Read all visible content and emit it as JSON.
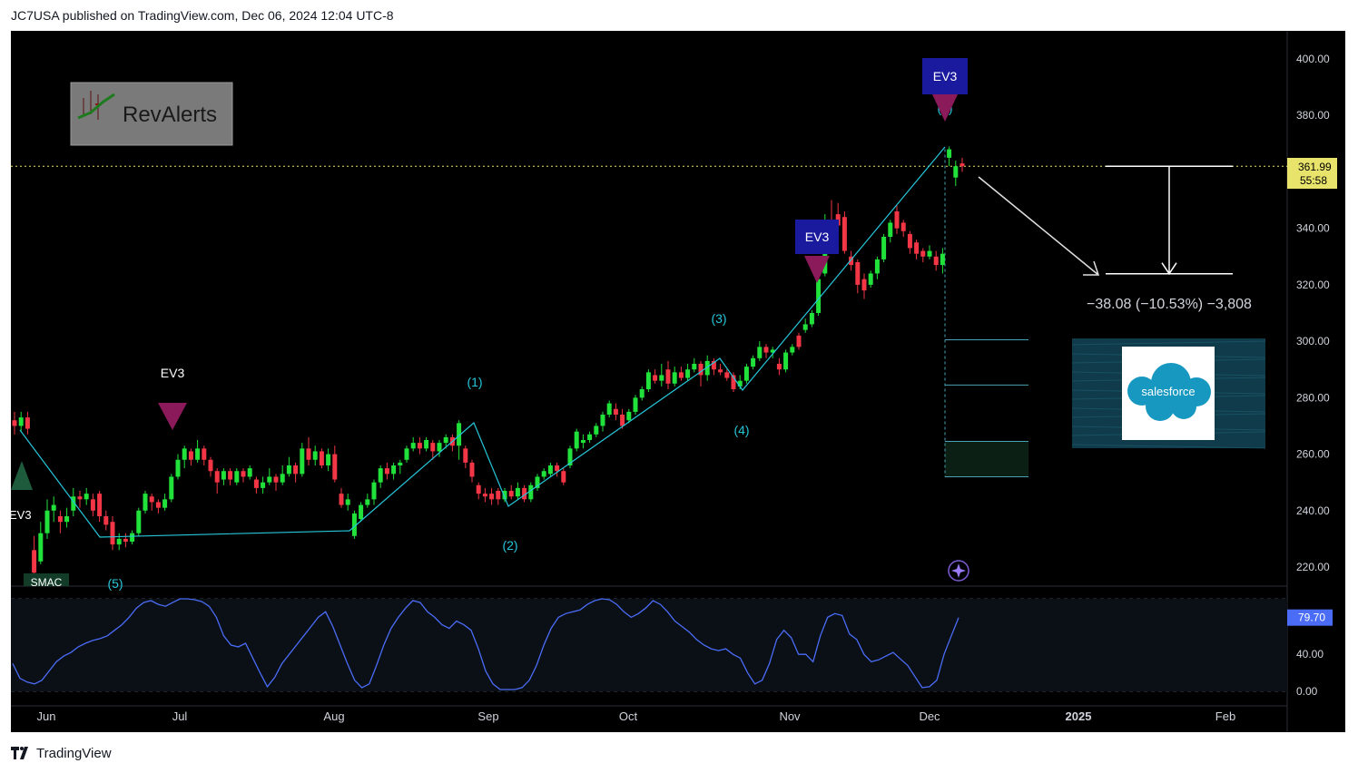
{
  "header": {
    "text": "JC7USA published on TradingView.com, Dec 06, 2024 12:04 UTC-8"
  },
  "footer": {
    "brand": "TradingView"
  },
  "logo": {
    "text": "RevAlerts"
  },
  "badge": {
    "text": "salesforce"
  },
  "colors": {
    "up": "#21e23b",
    "down": "#f23645",
    "wave": "#26c6da",
    "rsi": "#4a6cf7",
    "ev3_box": "#1a1a9e",
    "arrow": "#8b1a5a",
    "price_line": "#e8e36b"
  },
  "chart_data": {
    "type": "candlestick",
    "price_axis": {
      "ticks": [
        "400.00",
        "380.00",
        "360.00",
        "340.00",
        "320.00",
        "300.00",
        "280.00",
        "260.00",
        "240.00",
        "220.00"
      ],
      "range": [
        212,
        400
      ]
    },
    "rsi_axis": {
      "ticks": [
        "40.00",
        "0.00"
      ],
      "range": [
        0,
        100
      ],
      "current": "79.70"
    },
    "time_axis": {
      "ticks": [
        "Jun",
        "Jul",
        "Aug",
        "Sep",
        "Oct",
        "Nov",
        "Dec",
        "2025",
        "Feb"
      ]
    },
    "last_price": "361.99",
    "countdown": "55:58",
    "measure": {
      "text": "−38.08 (−10.53%) −3,808",
      "from": 361.99,
      "to": 323.91
    },
    "wave_labels": [
      "(1)",
      "(2)",
      "(3)",
      "(4)",
      "(5)",
      "(5)"
    ],
    "signals": [
      "EV3",
      "EV3",
      "EV3",
      "EV3"
    ],
    "tag": "SMAC",
    "target_levels": [
      300.5,
      284.5,
      264.5,
      252.0
    ],
    "candles": [
      {
        "o": 272,
        "c": 270,
        "h": 275,
        "l": 267
      },
      {
        "o": 270,
        "c": 273,
        "h": 275,
        "l": 268
      },
      {
        "o": 273,
        "c": 269,
        "h": 275,
        "l": 267
      },
      {
        "o": 226,
        "c": 218,
        "h": 231,
        "l": 214
      },
      {
        "o": 222,
        "c": 232,
        "h": 236,
        "l": 221
      },
      {
        "o": 232,
        "c": 240,
        "h": 244,
        "l": 230
      },
      {
        "o": 240,
        "c": 242,
        "h": 245,
        "l": 236
      },
      {
        "o": 238,
        "c": 236,
        "h": 240,
        "l": 232
      },
      {
        "o": 236,
        "c": 238,
        "h": 241,
        "l": 234
      },
      {
        "o": 240,
        "c": 245,
        "h": 248,
        "l": 238
      },
      {
        "o": 245,
        "c": 244,
        "h": 247,
        "l": 241
      },
      {
        "o": 244,
        "c": 246,
        "h": 248,
        "l": 242
      },
      {
        "o": 244,
        "c": 240,
        "h": 246,
        "l": 238
      },
      {
        "o": 246,
        "c": 238,
        "h": 247,
        "l": 236
      },
      {
        "o": 238,
        "c": 235,
        "h": 240,
        "l": 233
      },
      {
        "o": 236,
        "c": 228,
        "h": 238,
        "l": 226
      },
      {
        "o": 228,
        "c": 230,
        "h": 232,
        "l": 226
      },
      {
        "o": 230,
        "c": 229,
        "h": 232,
        "l": 227
      },
      {
        "o": 229,
        "c": 232,
        "h": 233,
        "l": 228
      },
      {
        "o": 232,
        "c": 240,
        "h": 241,
        "l": 231
      },
      {
        "o": 240,
        "c": 246,
        "h": 247,
        "l": 239
      },
      {
        "o": 245,
        "c": 243,
        "h": 246,
        "l": 240
      },
      {
        "o": 243,
        "c": 241,
        "h": 244,
        "l": 239
      },
      {
        "o": 241,
        "c": 244,
        "h": 246,
        "l": 240
      },
      {
        "o": 244,
        "c": 252,
        "h": 253,
        "l": 243
      },
      {
        "o": 252,
        "c": 258,
        "h": 260,
        "l": 251
      },
      {
        "o": 258,
        "c": 262,
        "h": 263,
        "l": 255
      },
      {
        "o": 261,
        "c": 258,
        "h": 262,
        "l": 256
      },
      {
        "o": 258,
        "c": 262,
        "h": 265,
        "l": 257
      },
      {
        "o": 262,
        "c": 258,
        "h": 263,
        "l": 256
      },
      {
        "o": 258,
        "c": 254,
        "h": 259,
        "l": 252
      },
      {
        "o": 254,
        "c": 250,
        "h": 255,
        "l": 246
      },
      {
        "o": 251,
        "c": 254,
        "h": 255,
        "l": 249
      },
      {
        "o": 254,
        "c": 251,
        "h": 255,
        "l": 249
      },
      {
        "o": 250,
        "c": 254,
        "h": 255,
        "l": 249
      },
      {
        "o": 254,
        "c": 252,
        "h": 255,
        "l": 250
      },
      {
        "o": 252,
        "c": 255,
        "h": 256,
        "l": 251
      },
      {
        "o": 251,
        "c": 248,
        "h": 252,
        "l": 246
      },
      {
        "o": 248,
        "c": 250,
        "h": 252,
        "l": 246
      },
      {
        "o": 250,
        "c": 252,
        "h": 255,
        "l": 249
      },
      {
        "o": 252,
        "c": 250,
        "h": 253,
        "l": 247
      },
      {
        "o": 250,
        "c": 253,
        "h": 256,
        "l": 249
      },
      {
        "o": 253,
        "c": 256,
        "h": 259,
        "l": 252
      },
      {
        "o": 256,
        "c": 253,
        "h": 257,
        "l": 250
      },
      {
        "o": 253,
        "c": 262,
        "h": 264,
        "l": 252
      },
      {
        "o": 262,
        "c": 258,
        "h": 266,
        "l": 256
      },
      {
        "o": 258,
        "c": 261,
        "h": 263,
        "l": 256
      },
      {
        "o": 261,
        "c": 256,
        "h": 262,
        "l": 255
      },
      {
        "o": 256,
        "c": 260,
        "h": 262,
        "l": 254
      },
      {
        "o": 260,
        "c": 251,
        "h": 263,
        "l": 250
      },
      {
        "o": 246,
        "c": 242,
        "h": 248,
        "l": 241
      },
      {
        "o": 242,
        "c": 244,
        "h": 246,
        "l": 240
      },
      {
        "o": 231,
        "c": 239,
        "h": 240,
        "l": 230
      },
      {
        "o": 237,
        "c": 242,
        "h": 243,
        "l": 236
      },
      {
        "o": 242,
        "c": 244,
        "h": 246,
        "l": 241
      },
      {
        "o": 244,
        "c": 250,
        "h": 251,
        "l": 242
      },
      {
        "o": 250,
        "c": 255,
        "h": 256,
        "l": 248
      },
      {
        "o": 255,
        "c": 253,
        "h": 257,
        "l": 251
      },
      {
        "o": 253,
        "c": 256,
        "h": 257,
        "l": 251
      },
      {
        "o": 256,
        "c": 257,
        "h": 258,
        "l": 253
      },
      {
        "o": 258,
        "c": 262,
        "h": 263,
        "l": 257
      },
      {
        "o": 262,
        "c": 264,
        "h": 266,
        "l": 261
      },
      {
        "o": 264,
        "c": 262,
        "h": 266,
        "l": 260
      },
      {
        "o": 262,
        "c": 265,
        "h": 266,
        "l": 261
      },
      {
        "o": 264,
        "c": 261,
        "h": 265,
        "l": 258
      },
      {
        "o": 261,
        "c": 264,
        "h": 265,
        "l": 259
      },
      {
        "o": 264,
        "c": 266,
        "h": 267,
        "l": 262
      },
      {
        "o": 266,
        "c": 263,
        "h": 267,
        "l": 261
      },
      {
        "o": 263,
        "c": 271,
        "h": 272,
        "l": 258
      },
      {
        "o": 262,
        "c": 257,
        "h": 263,
        "l": 255
      },
      {
        "o": 257,
        "c": 252,
        "h": 258,
        "l": 250
      },
      {
        "o": 249,
        "c": 246,
        "h": 250,
        "l": 244
      },
      {
        "o": 246,
        "c": 245,
        "h": 248,
        "l": 243
      },
      {
        "o": 246,
        "c": 244,
        "h": 248,
        "l": 242
      },
      {
        "o": 247,
        "c": 244,
        "h": 248,
        "l": 242
      },
      {
        "o": 244,
        "c": 247,
        "h": 248,
        "l": 243
      },
      {
        "o": 247,
        "c": 245,
        "h": 249,
        "l": 244
      },
      {
        "o": 245,
        "c": 248,
        "h": 250,
        "l": 244
      },
      {
        "o": 248,
        "c": 244,
        "h": 249,
        "l": 243
      },
      {
        "o": 244,
        "c": 249,
        "h": 250,
        "l": 243
      },
      {
        "o": 248,
        "c": 252,
        "h": 253,
        "l": 247
      },
      {
        "o": 252,
        "c": 254,
        "h": 255,
        "l": 251
      },
      {
        "o": 253,
        "c": 256,
        "h": 257,
        "l": 252
      },
      {
        "o": 256,
        "c": 254,
        "h": 257,
        "l": 252
      },
      {
        "o": 254,
        "c": 250,
        "h": 255,
        "l": 249
      },
      {
        "o": 256,
        "c": 262,
        "h": 263,
        "l": 255
      },
      {
        "o": 262,
        "c": 268,
        "h": 269,
        "l": 261
      },
      {
        "o": 264,
        "c": 265,
        "h": 267,
        "l": 262
      },
      {
        "o": 265,
        "c": 267,
        "h": 268,
        "l": 264
      },
      {
        "o": 267,
        "c": 270,
        "h": 271,
        "l": 266
      },
      {
        "o": 270,
        "c": 274,
        "h": 275,
        "l": 268
      },
      {
        "o": 274,
        "c": 278,
        "h": 279,
        "l": 273
      },
      {
        "o": 276,
        "c": 274,
        "h": 278,
        "l": 272
      },
      {
        "o": 274,
        "c": 270,
        "h": 276,
        "l": 269
      },
      {
        "o": 272,
        "c": 275,
        "h": 276,
        "l": 271
      },
      {
        "o": 275,
        "c": 280,
        "h": 281,
        "l": 274
      },
      {
        "o": 280,
        "c": 283,
        "h": 284,
        "l": 279
      },
      {
        "o": 283,
        "c": 289,
        "h": 290,
        "l": 282
      },
      {
        "o": 288,
        "c": 286,
        "h": 290,
        "l": 285
      },
      {
        "o": 286,
        "c": 288,
        "h": 292,
        "l": 284
      },
      {
        "o": 290,
        "c": 285,
        "h": 293,
        "l": 283
      },
      {
        "o": 285,
        "c": 289,
        "h": 291,
        "l": 284
      },
      {
        "o": 289,
        "c": 287,
        "h": 291,
        "l": 286
      },
      {
        "o": 287,
        "c": 290,
        "h": 292,
        "l": 286
      },
      {
        "o": 290,
        "c": 292,
        "h": 294,
        "l": 289
      },
      {
        "o": 292,
        "c": 288,
        "h": 293,
        "l": 284
      },
      {
        "o": 288,
        "c": 293,
        "h": 295,
        "l": 286
      },
      {
        "o": 293,
        "c": 290,
        "h": 294,
        "l": 288
      },
      {
        "o": 290,
        "c": 289,
        "h": 292,
        "l": 288
      },
      {
        "o": 289,
        "c": 287,
        "h": 290,
        "l": 286
      },
      {
        "o": 288,
        "c": 283,
        "h": 289,
        "l": 282
      },
      {
        "o": 284,
        "c": 286,
        "h": 288,
        "l": 283
      },
      {
        "o": 286,
        "c": 291,
        "h": 292,
        "l": 285
      },
      {
        "o": 291,
        "c": 294,
        "h": 295,
        "l": 290
      },
      {
        "o": 294,
        "c": 298,
        "h": 300,
        "l": 293
      },
      {
        "o": 298,
        "c": 296,
        "h": 299,
        "l": 294
      },
      {
        "o": 296,
        "c": 297,
        "h": 298,
        "l": 294
      },
      {
        "o": 292,
        "c": 290,
        "h": 294,
        "l": 288
      },
      {
        "o": 290,
        "c": 296,
        "h": 297,
        "l": 289
      },
      {
        "o": 296,
        "c": 298,
        "h": 299,
        "l": 295
      },
      {
        "o": 302,
        "c": 298,
        "h": 303,
        "l": 297
      },
      {
        "o": 304,
        "c": 306,
        "h": 308,
        "l": 303
      },
      {
        "o": 306,
        "c": 310,
        "h": 311,
        "l": 305
      },
      {
        "o": 310,
        "c": 322,
        "h": 323,
        "l": 309
      },
      {
        "o": 324,
        "c": 342,
        "h": 345,
        "l": 323
      },
      {
        "o": 342,
        "c": 340,
        "h": 350,
        "l": 338
      },
      {
        "o": 345,
        "c": 341,
        "h": 349,
        "l": 338
      },
      {
        "o": 344,
        "c": 332,
        "h": 346,
        "l": 331
      },
      {
        "o": 330,
        "c": 327,
        "h": 332,
        "l": 325
      },
      {
        "o": 328,
        "c": 320,
        "h": 329,
        "l": 317
      },
      {
        "o": 322,
        "c": 318,
        "h": 324,
        "l": 315
      },
      {
        "o": 320,
        "c": 324,
        "h": 325,
        "l": 319
      },
      {
        "o": 324,
        "c": 329,
        "h": 330,
        "l": 322
      },
      {
        "o": 329,
        "c": 337,
        "h": 338,
        "l": 328
      },
      {
        "o": 337,
        "c": 342,
        "h": 343,
        "l": 335
      },
      {
        "o": 346,
        "c": 340,
        "h": 348,
        "l": 338
      },
      {
        "o": 342,
        "c": 339,
        "h": 343,
        "l": 337
      },
      {
        "o": 338,
        "c": 333,
        "h": 339,
        "l": 331
      },
      {
        "o": 335,
        "c": 331,
        "h": 336,
        "l": 329
      },
      {
        "o": 332,
        "c": 330,
        "h": 333,
        "l": 328
      },
      {
        "o": 330,
        "c": 332,
        "h": 334,
        "l": 329
      },
      {
        "o": 330,
        "c": 327,
        "h": 332,
        "l": 325
      },
      {
        "o": 327,
        "c": 331,
        "h": 333,
        "l": 324
      },
      {
        "o": 365,
        "c": 368,
        "h": 369,
        "l": 362
      },
      {
        "o": 358,
        "c": 362,
        "h": 364,
        "l": 355
      },
      {
        "o": 363,
        "c": 362,
        "h": 365,
        "l": 360
      }
    ],
    "rsi": [
      30,
      14,
      10,
      8,
      12,
      22,
      32,
      38,
      42,
      48,
      52,
      55,
      57,
      60,
      66,
      72,
      80,
      90,
      96,
      98,
      94,
      92,
      96,
      100,
      100,
      99,
      97,
      92,
      80,
      60,
      50,
      48,
      52,
      36,
      20,
      5,
      15,
      30,
      40,
      50,
      60,
      70,
      80,
      86,
      70,
      50,
      30,
      12,
      4,
      8,
      28,
      50,
      68,
      80,
      90,
      98,
      96,
      86,
      80,
      72,
      68,
      76,
      72,
      66,
      46,
      22,
      8,
      2,
      2,
      2,
      4,
      12,
      28,
      50,
      68,
      80,
      84,
      86,
      88,
      94,
      98,
      100,
      99,
      94,
      86,
      80,
      84,
      90,
      98,
      94,
      86,
      76,
      70,
      64,
      56,
      50,
      46,
      44,
      46,
      40,
      36,
      20,
      8,
      12,
      30,
      56,
      66,
      58,
      40,
      40,
      32,
      60,
      80,
      84,
      82,
      62,
      56,
      40,
      32,
      34,
      38,
      42,
      35,
      28,
      16,
      4,
      5,
      12,
      40,
      60,
      79.7
    ]
  }
}
